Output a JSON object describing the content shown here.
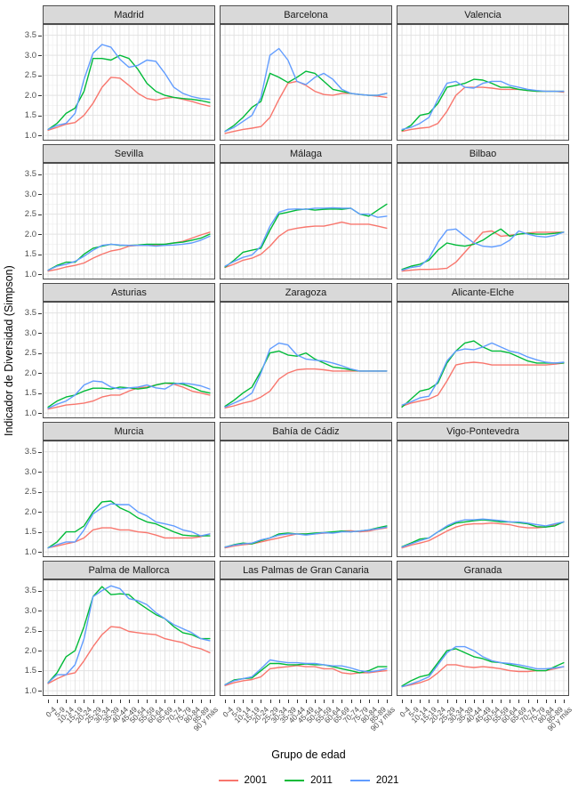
{
  "figure": {
    "ylabel": "Indicador de Diversidad (Simpson)",
    "xlabel": "Grupo de edad"
  },
  "chart_data": {
    "type": "line",
    "facet_layout": {
      "rows": 5,
      "cols": 3
    },
    "title": "",
    "xlabel": "Grupo de edad",
    "ylabel": "Indicador de Diversidad (Simpson)",
    "categories": [
      "0-4",
      "5-9",
      "10-14",
      "15-19",
      "20-24",
      "25-29",
      "30-34",
      "35-39",
      "40-44",
      "45-49",
      "50-54",
      "55-59",
      "60-64",
      "65-69",
      "70-74",
      "75-79",
      "80-84",
      "85-89",
      "90 y más"
    ],
    "y_ticks": [
      1.0,
      1.5,
      2.0,
      2.5,
      3.0,
      3.5
    ],
    "ylim": [
      0.87,
      3.78
    ],
    "grid": true,
    "legend_position": "bottom",
    "series_names": [
      "2001",
      "2011",
      "2021"
    ],
    "series_colors": {
      "2001": "#F8766D",
      "2011": "#00BA38",
      "2021": "#619CFF"
    },
    "facets": [
      {
        "name": "Madrid",
        "series": {
          "2001": [
            1.13,
            1.2,
            1.28,
            1.32,
            1.5,
            1.8,
            2.2,
            2.45,
            2.43,
            2.25,
            2.05,
            1.92,
            1.88,
            1.93,
            1.95,
            1.9,
            1.85,
            1.78,
            1.73
          ],
          "2011": [
            1.15,
            1.3,
            1.55,
            1.68,
            2.1,
            2.92,
            2.92,
            2.88,
            3.0,
            2.92,
            2.65,
            2.3,
            2.1,
            2.0,
            1.95,
            1.92,
            1.9,
            1.87,
            1.82
          ],
          "2021": [
            1.15,
            1.25,
            1.3,
            1.55,
            2.4,
            3.05,
            3.27,
            3.2,
            2.9,
            2.7,
            2.75,
            2.88,
            2.85,
            2.55,
            2.2,
            2.05,
            1.97,
            1.92,
            1.9
          ]
        }
      },
      {
        "name": "Barcelona",
        "series": {
          "2001": [
            1.05,
            1.1,
            1.15,
            1.18,
            1.22,
            1.45,
            1.9,
            2.3,
            2.35,
            2.25,
            2.1,
            2.02,
            2.0,
            2.05,
            2.05,
            2.02,
            2.0,
            1.98,
            1.95
          ],
          "2011": [
            1.1,
            1.25,
            1.45,
            1.7,
            1.85,
            2.55,
            2.45,
            2.32,
            2.45,
            2.6,
            2.55,
            2.35,
            2.15,
            2.1,
            2.05,
            2.02,
            2.0,
            2.0,
            2.05
          ],
          "2021": [
            1.1,
            1.2,
            1.35,
            1.5,
            1.95,
            3.0,
            3.17,
            2.88,
            2.35,
            2.27,
            2.45,
            2.55,
            2.4,
            2.15,
            2.05,
            2.02,
            2.0,
            2.0,
            2.05
          ]
        }
      },
      {
        "name": "Valencia",
        "series": {
          "2001": [
            1.1,
            1.15,
            1.18,
            1.2,
            1.3,
            1.6,
            2.0,
            2.2,
            2.2,
            2.2,
            2.18,
            2.15,
            2.15,
            2.15,
            2.12,
            2.1,
            2.1,
            2.1,
            2.08
          ],
          "2011": [
            1.12,
            1.25,
            1.5,
            1.55,
            1.8,
            2.2,
            2.25,
            2.3,
            2.4,
            2.38,
            2.3,
            2.2,
            2.2,
            2.15,
            2.12,
            2.1,
            2.1,
            2.1,
            2.1
          ],
          "2021": [
            1.15,
            1.2,
            1.3,
            1.45,
            1.9,
            2.3,
            2.35,
            2.2,
            2.18,
            2.3,
            2.35,
            2.35,
            2.25,
            2.2,
            2.15,
            2.12,
            2.1,
            2.1,
            2.1
          ]
        }
      },
      {
        "name": "Sevilla",
        "series": {
          "2001": [
            1.08,
            1.12,
            1.18,
            1.22,
            1.28,
            1.4,
            1.5,
            1.58,
            1.62,
            1.7,
            1.72,
            1.72,
            1.73,
            1.75,
            1.78,
            1.82,
            1.9,
            1.98,
            2.05
          ],
          "2011": [
            1.1,
            1.22,
            1.3,
            1.3,
            1.5,
            1.65,
            1.7,
            1.75,
            1.72,
            1.72,
            1.73,
            1.75,
            1.75,
            1.75,
            1.78,
            1.8,
            1.85,
            1.9,
            2.0
          ],
          "2021": [
            1.1,
            1.2,
            1.25,
            1.32,
            1.45,
            1.6,
            1.72,
            1.75,
            1.73,
            1.72,
            1.72,
            1.72,
            1.7,
            1.72,
            1.73,
            1.75,
            1.78,
            1.85,
            1.95
          ]
        }
      },
      {
        "name": "Málaga",
        "series": {
          "2001": [
            1.17,
            1.25,
            1.35,
            1.4,
            1.5,
            1.7,
            1.95,
            2.1,
            2.15,
            2.18,
            2.2,
            2.2,
            2.25,
            2.3,
            2.25,
            2.25,
            2.25,
            2.2,
            2.15
          ],
          "2011": [
            1.18,
            1.35,
            1.55,
            1.6,
            1.65,
            2.1,
            2.5,
            2.55,
            2.6,
            2.63,
            2.6,
            2.62,
            2.63,
            2.62,
            2.65,
            2.5,
            2.45,
            2.6,
            2.75
          ],
          "2021": [
            1.2,
            1.32,
            1.42,
            1.48,
            1.7,
            2.2,
            2.55,
            2.62,
            2.63,
            2.62,
            2.65,
            2.65,
            2.66,
            2.65,
            2.65,
            2.5,
            2.5,
            2.42,
            2.45
          ]
        }
      },
      {
        "name": "Bilbao",
        "series": {
          "2001": [
            1.08,
            1.1,
            1.12,
            1.12,
            1.13,
            1.15,
            1.3,
            1.55,
            1.8,
            2.05,
            2.08,
            1.95,
            1.97,
            2.0,
            2.03,
            2.05,
            2.05,
            2.05,
            2.05
          ],
          "2011": [
            1.12,
            1.2,
            1.25,
            1.35,
            1.6,
            1.78,
            1.73,
            1.7,
            1.75,
            1.85,
            2.0,
            2.13,
            1.95,
            2.0,
            2.02,
            2.0,
            2.0,
            2.02,
            2.05
          ],
          "2021": [
            1.1,
            1.17,
            1.2,
            1.4,
            1.8,
            2.1,
            2.13,
            1.95,
            1.78,
            1.7,
            1.68,
            1.72,
            1.85,
            2.08,
            2.0,
            1.95,
            1.93,
            1.97,
            2.05
          ]
        }
      },
      {
        "name": "Asturias",
        "series": {
          "2001": [
            1.1,
            1.15,
            1.2,
            1.22,
            1.25,
            1.3,
            1.4,
            1.45,
            1.45,
            1.55,
            1.63,
            1.65,
            1.7,
            1.75,
            1.72,
            1.65,
            1.55,
            1.5,
            1.45
          ],
          "2011": [
            1.15,
            1.3,
            1.4,
            1.45,
            1.55,
            1.62,
            1.62,
            1.6,
            1.65,
            1.63,
            1.6,
            1.63,
            1.7,
            1.75,
            1.75,
            1.72,
            1.65,
            1.55,
            1.5
          ],
          "2021": [
            1.12,
            1.22,
            1.3,
            1.45,
            1.7,
            1.8,
            1.78,
            1.65,
            1.6,
            1.63,
            1.65,
            1.7,
            1.63,
            1.6,
            1.73,
            1.75,
            1.72,
            1.68,
            1.6
          ]
        }
      },
      {
        "name": "Zaragoza",
        "series": {
          "2001": [
            1.13,
            1.18,
            1.25,
            1.3,
            1.4,
            1.55,
            1.85,
            2.0,
            2.08,
            2.1,
            2.1,
            2.08,
            2.05,
            2.05,
            2.05,
            2.05,
            2.05,
            2.05,
            2.05
          ],
          "2011": [
            1.17,
            1.32,
            1.5,
            1.65,
            2.05,
            2.5,
            2.55,
            2.45,
            2.42,
            2.5,
            2.35,
            2.25,
            2.15,
            2.12,
            2.08,
            2.05,
            2.05,
            2.05,
            2.05
          ],
          "2021": [
            1.15,
            1.25,
            1.35,
            1.5,
            2.0,
            2.6,
            2.75,
            2.7,
            2.45,
            2.35,
            2.32,
            2.3,
            2.25,
            2.18,
            2.1,
            2.05,
            2.05,
            2.05,
            2.05
          ]
        }
      },
      {
        "name": "Alicante-Elche",
        "series": {
          "2001": [
            1.17,
            1.25,
            1.3,
            1.35,
            1.45,
            1.8,
            2.2,
            2.25,
            2.27,
            2.25,
            2.2,
            2.2,
            2.2,
            2.2,
            2.2,
            2.2,
            2.2,
            2.22,
            2.25
          ],
          "2011": [
            1.15,
            1.35,
            1.55,
            1.6,
            1.75,
            2.25,
            2.55,
            2.75,
            2.8,
            2.65,
            2.55,
            2.55,
            2.5,
            2.4,
            2.3,
            2.25,
            2.25,
            2.25,
            2.25
          ],
          "2021": [
            1.2,
            1.28,
            1.38,
            1.42,
            1.8,
            2.3,
            2.55,
            2.6,
            2.58,
            2.65,
            2.75,
            2.65,
            2.55,
            2.5,
            2.4,
            2.33,
            2.27,
            2.25,
            2.27
          ]
        }
      },
      {
        "name": "Murcia",
        "series": {
          "2001": [
            1.1,
            1.15,
            1.2,
            1.25,
            1.35,
            1.55,
            1.6,
            1.6,
            1.55,
            1.55,
            1.5,
            1.48,
            1.42,
            1.35,
            1.35,
            1.35,
            1.35,
            1.38,
            1.45
          ],
          "2011": [
            1.1,
            1.25,
            1.5,
            1.5,
            1.65,
            2.0,
            2.25,
            2.27,
            2.1,
            2.0,
            1.85,
            1.75,
            1.7,
            1.6,
            1.5,
            1.42,
            1.4,
            1.4,
            1.4
          ],
          "2021": [
            1.1,
            1.18,
            1.25,
            1.25,
            1.55,
            1.95,
            2.1,
            2.2,
            2.18,
            2.18,
            2.0,
            1.9,
            1.75,
            1.7,
            1.65,
            1.55,
            1.5,
            1.4,
            1.45
          ]
        }
      },
      {
        "name": "Bahía de Cádiz",
        "series": {
          "2001": [
            1.1,
            1.15,
            1.18,
            1.2,
            1.25,
            1.3,
            1.35,
            1.4,
            1.45,
            1.45,
            1.45,
            1.47,
            1.48,
            1.52,
            1.53,
            1.5,
            1.52,
            1.57,
            1.6
          ],
          "2011": [
            1.12,
            1.18,
            1.22,
            1.2,
            1.28,
            1.35,
            1.45,
            1.47,
            1.45,
            1.45,
            1.47,
            1.48,
            1.5,
            1.52,
            1.5,
            1.52,
            1.55,
            1.6,
            1.65
          ],
          "2021": [
            1.12,
            1.17,
            1.2,
            1.22,
            1.3,
            1.35,
            1.42,
            1.45,
            1.45,
            1.42,
            1.45,
            1.48,
            1.47,
            1.5,
            1.5,
            1.52,
            1.55,
            1.58,
            1.62
          ]
        }
      },
      {
        "name": "Vigo-Pontevedra",
        "series": {
          "2001": [
            1.1,
            1.17,
            1.22,
            1.28,
            1.4,
            1.52,
            1.62,
            1.68,
            1.7,
            1.7,
            1.72,
            1.7,
            1.68,
            1.63,
            1.6,
            1.6,
            1.62,
            1.68,
            1.75
          ],
          "2011": [
            1.13,
            1.22,
            1.32,
            1.35,
            1.5,
            1.62,
            1.72,
            1.75,
            1.78,
            1.8,
            1.78,
            1.75,
            1.75,
            1.73,
            1.7,
            1.63,
            1.62,
            1.65,
            1.75
          ],
          "2021": [
            1.12,
            1.2,
            1.28,
            1.35,
            1.5,
            1.65,
            1.75,
            1.8,
            1.8,
            1.82,
            1.8,
            1.78,
            1.75,
            1.75,
            1.72,
            1.68,
            1.65,
            1.7,
            1.75
          ]
        }
      },
      {
        "name": "Palma de Mallorca",
        "series": {
          "2001": [
            1.18,
            1.3,
            1.4,
            1.45,
            1.75,
            2.1,
            2.4,
            2.6,
            2.58,
            2.48,
            2.45,
            2.42,
            2.4,
            2.3,
            2.25,
            2.2,
            2.1,
            2.05,
            1.95
          ],
          "2011": [
            1.2,
            1.45,
            1.85,
            2.0,
            2.6,
            3.35,
            3.6,
            3.4,
            3.42,
            3.4,
            3.2,
            3.05,
            2.9,
            2.8,
            2.6,
            2.45,
            2.4,
            2.3,
            2.3
          ],
          "2021": [
            1.2,
            1.4,
            1.4,
            1.65,
            2.3,
            3.35,
            3.5,
            3.62,
            3.55,
            3.3,
            3.25,
            3.15,
            2.95,
            2.8,
            2.65,
            2.55,
            2.45,
            2.3,
            2.25
          ]
        }
      },
      {
        "name": "Las Palmas de Gran Canaria",
        "series": {
          "2001": [
            1.13,
            1.2,
            1.25,
            1.28,
            1.35,
            1.55,
            1.58,
            1.6,
            1.63,
            1.6,
            1.6,
            1.55,
            1.55,
            1.45,
            1.42,
            1.45,
            1.45,
            1.48,
            1.5
          ],
          "2011": [
            1.15,
            1.27,
            1.3,
            1.32,
            1.5,
            1.68,
            1.68,
            1.65,
            1.65,
            1.67,
            1.65,
            1.65,
            1.6,
            1.55,
            1.5,
            1.45,
            1.5,
            1.6,
            1.6
          ],
          "2021": [
            1.15,
            1.25,
            1.3,
            1.35,
            1.55,
            1.77,
            1.73,
            1.7,
            1.7,
            1.68,
            1.68,
            1.65,
            1.62,
            1.62,
            1.57,
            1.5,
            1.47,
            1.5,
            1.55
          ]
        }
      },
      {
        "name": "Granada",
        "series": {
          "2001": [
            1.1,
            1.15,
            1.2,
            1.28,
            1.45,
            1.65,
            1.65,
            1.6,
            1.58,
            1.6,
            1.58,
            1.55,
            1.5,
            1.48,
            1.48,
            1.5,
            1.5,
            1.55,
            1.6
          ],
          "2011": [
            1.12,
            1.25,
            1.35,
            1.4,
            1.7,
            2.0,
            2.05,
            1.95,
            1.85,
            1.8,
            1.72,
            1.7,
            1.65,
            1.6,
            1.55,
            1.5,
            1.5,
            1.6,
            1.7
          ],
          "2021": [
            1.1,
            1.17,
            1.25,
            1.35,
            1.65,
            1.95,
            2.1,
            2.1,
            2.0,
            1.85,
            1.75,
            1.7,
            1.68,
            1.65,
            1.6,
            1.55,
            1.55,
            1.57,
            1.6
          ]
        }
      }
    ]
  }
}
